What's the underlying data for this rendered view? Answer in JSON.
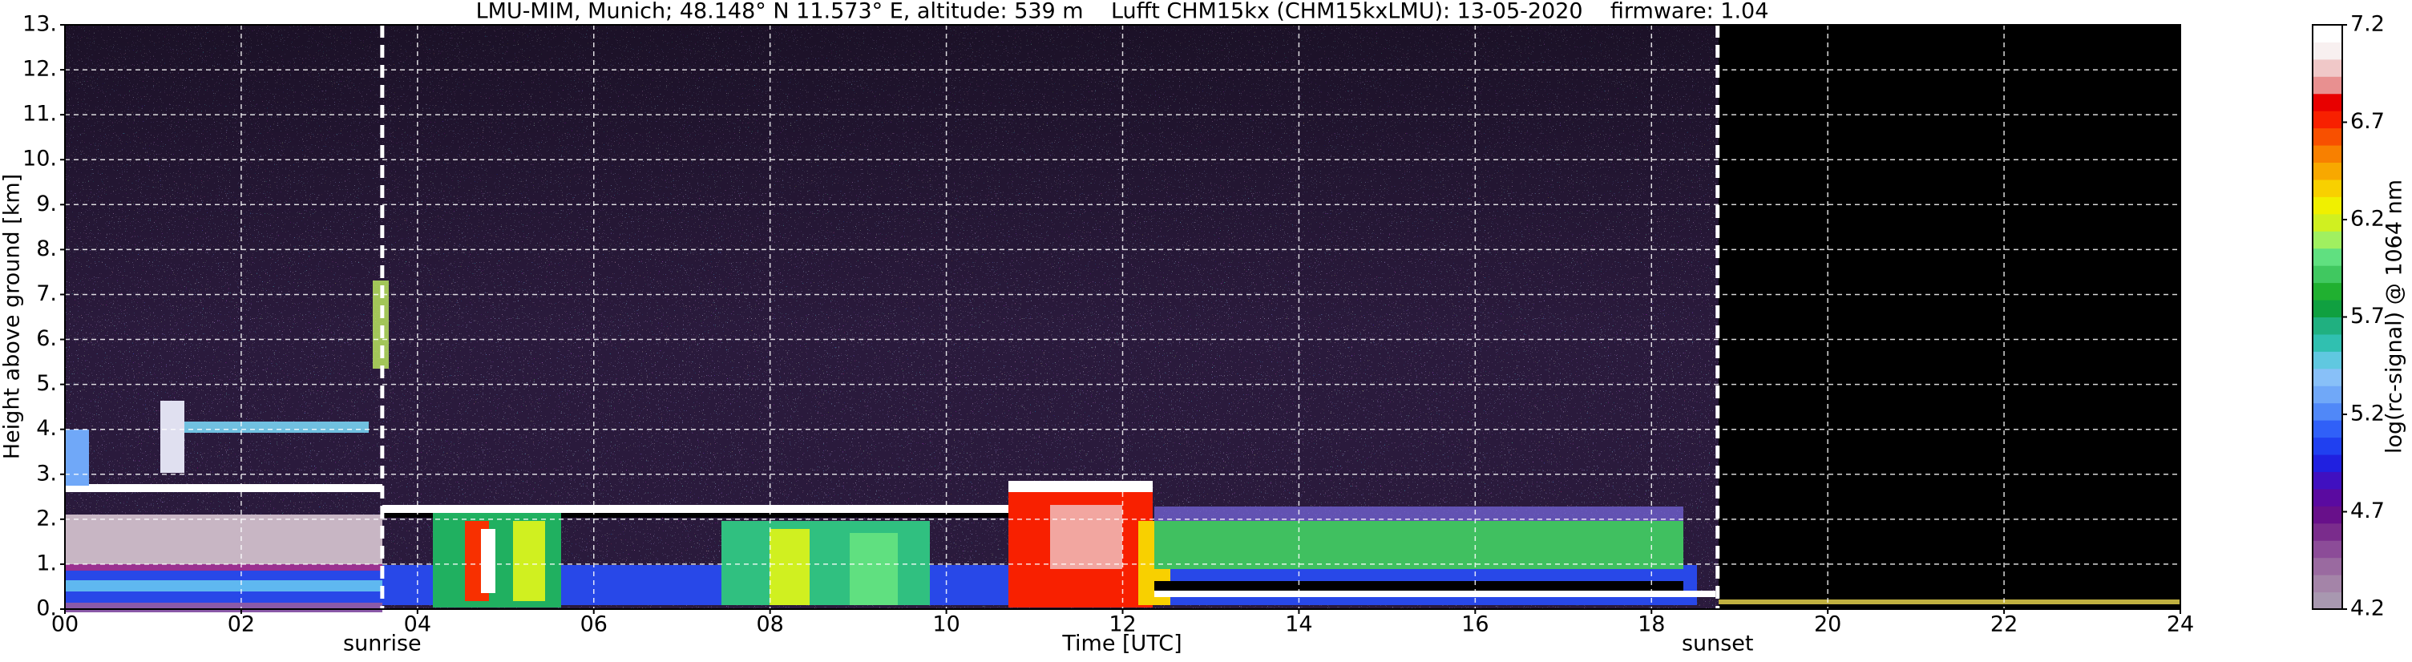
{
  "chart_data": {
    "type": "heatmap",
    "title": "LMU-MIM, Munich; 48.148° N 11.573° E, altitude: 539 m    Lufft CHM15kx (CHM15kxLMU): 13-05-2020    firmware: 1.04",
    "x_label": "Time [UTC]",
    "y_label": "Height above ground [km]",
    "colorbar_label": "log(rc-signal) @ 1064 nm",
    "xlim": [
      0,
      24
    ],
    "xticks": [
      {
        "value": 0,
        "label": "00"
      },
      {
        "value": 2,
        "label": "02"
      },
      {
        "value": 4,
        "label": "04"
      },
      {
        "value": 6,
        "label": "06"
      },
      {
        "value": 8,
        "label": "08"
      },
      10,
      12,
      14,
      16,
      18,
      20,
      22,
      24
    ],
    "ylim": [
      0,
      13
    ],
    "yticks": [
      {
        "value": 0,
        "label": "0."
      },
      {
        "value": 1,
        "label": "1."
      },
      {
        "value": 2,
        "label": "2."
      },
      {
        "value": 3,
        "label": "3."
      },
      {
        "value": 4,
        "label": "4."
      },
      {
        "value": 5,
        "label": "5."
      },
      {
        "value": 6,
        "label": "6."
      },
      {
        "value": 7,
        "label": "7."
      },
      {
        "value": 8,
        "label": "8."
      },
      {
        "value": 9,
        "label": "9."
      },
      {
        "value": 10,
        "label": "10."
      },
      {
        "value": 11,
        "label": "11."
      },
      {
        "value": 12,
        "label": "12."
      },
      {
        "value": 13,
        "label": "13."
      }
    ],
    "clim": [
      4.2,
      7.2
    ],
    "cticks": [
      4.2,
      4.7,
      5.2,
      5.7,
      6.2,
      6.7,
      7.2
    ],
    "colormap": [
      "#a898b0",
      "#a484a8",
      "#9a6aa0",
      "#8c4c98",
      "#7a2c8c",
      "#68108a",
      "#5a0aa0",
      "#4010c0",
      "#2020e0",
      "#2040f0",
      "#3060f8",
      "#5088f8",
      "#70a8f8",
      "#88c0f8",
      "#60c8e0",
      "#30c0b0",
      "#20b080",
      "#10a040",
      "#20b030",
      "#40c860",
      "#60e080",
      "#a0f060",
      "#d0f020",
      "#f0f000",
      "#f8d000",
      "#f8a800",
      "#f88000",
      "#f85000",
      "#f82000",
      "#e80000",
      "#e89090",
      "#f0c8c8",
      "#f8f0f0",
      "#ffffff"
    ],
    "grid": true,
    "annotations": [
      {
        "label": "sunrise",
        "x": 3.6
      },
      {
        "label": "sunset",
        "x": 18.75
      }
    ]
  }
}
